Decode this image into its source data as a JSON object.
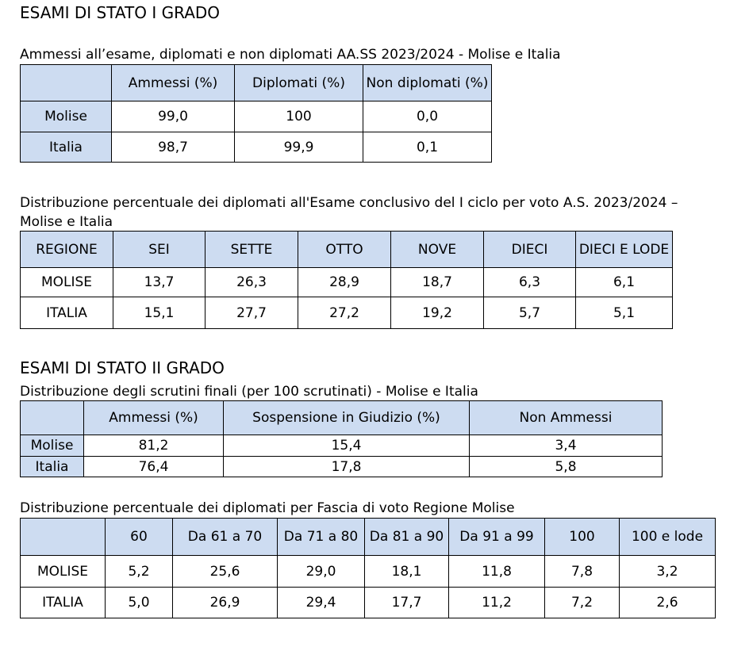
{
  "section1": {
    "title": "ESAMI DI STATO I GRADO",
    "table1": {
      "caption": "Ammessi all’esame, diplomati e non diplomati AA.SS 2023/2024 - Molise e Italia",
      "header": [
        "Ammessi (%)",
        "Diplomati (%)",
        "Non diplomati (%)"
      ],
      "rows": [
        [
          "Molise",
          "99,0",
          "100",
          "0,0"
        ],
        [
          "Italia",
          "98,7",
          "99,9",
          "0,1"
        ]
      ]
    },
    "table2": {
      "caption": "Distribuzione percentuale dei diplomati all'Esame conclusivo del I ciclo per voto A.S. 2023/2024 – Molise e Italia",
      "header": [
        "REGIONE",
        "SEI",
        "SETTE",
        "OTTO",
        "NOVE",
        "DIECI",
        "DIECI E LODE"
      ],
      "rows": [
        [
          "MOLISE",
          "13,7",
          "26,3",
          "28,9",
          "18,7",
          "6,3",
          "6,1"
        ],
        [
          "ITALIA",
          "15,1",
          "27,7",
          "27,2",
          "19,2",
          "5,7",
          "5,1"
        ]
      ]
    }
  },
  "section2": {
    "title": "ESAMI DI STATO II GRADO",
    "table3": {
      "caption": "Distribuzione degli scrutini finali (per 100 scrutinati) - Molise e Italia",
      "header": [
        "Ammessi (%)",
        "Sospensione in Giudizio (%)",
        "Non Ammessi"
      ],
      "rows": [
        [
          "Molise",
          "81,2",
          "15,4",
          "3,4"
        ],
        [
          "Italia",
          "76,4",
          "17,8",
          "5,8"
        ]
      ]
    },
    "table4": {
      "caption": "Distribuzione percentuale dei diplomati per Fascia di voto Regione Molise",
      "header": [
        "60",
        "Da 61 a 70",
        "Da 71 a 80",
        "Da 81 a 90",
        "Da 91 a 99",
        "100",
        "100 e lode"
      ],
      "rows": [
        [
          "MOLISE",
          "5,2",
          "25,6",
          "29,0",
          "18,1",
          "11,8",
          "7,8",
          "3,2"
        ],
        [
          "ITALIA",
          "5,0",
          "26,9",
          "29,4",
          "17,7",
          "11,2",
          "7,2",
          "2,6"
        ]
      ]
    }
  }
}
